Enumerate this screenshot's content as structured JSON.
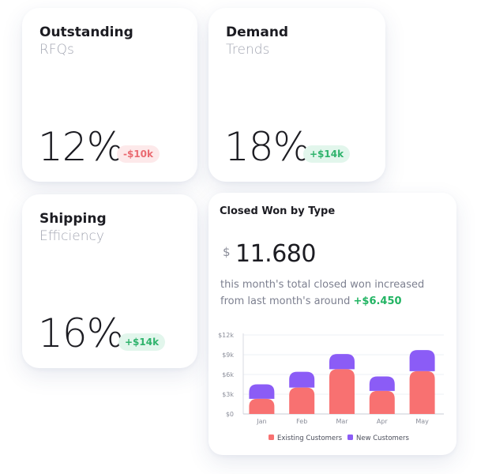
{
  "cards": [
    {
      "title": "Outstanding",
      "subtitle": "RFQs",
      "value": "12%",
      "change": "-$10k",
      "trend": "negative"
    },
    {
      "title": "Demand",
      "subtitle": "Trends",
      "value": "18%",
      "change": "+$14k",
      "trend": "positive"
    },
    {
      "title": "Shipping",
      "subtitle": "Efficiency",
      "value": "16%",
      "change": "+$14k",
      "trend": "positive"
    }
  ],
  "closed_won": {
    "title": "Closed Won by Type",
    "currency": "$",
    "amount": "11.680",
    "description": "this month's total closed won increased from last month's around",
    "increase": "+$6.450"
  },
  "colors": {
    "existing": "#f87171",
    "new": "#8b5cf6",
    "positive": "#2fb36c",
    "negative": "#ea6b72"
  },
  "chart_data": {
    "type": "bar",
    "stacked": true,
    "categories": [
      "Jan",
      "Feb",
      "Mar",
      "Apr",
      "May"
    ],
    "series": [
      {
        "name": "Existing Customers",
        "values": [
          2.3,
          4.0,
          6.8,
          3.5,
          6.5
        ]
      },
      {
        "name": "New Customers",
        "values": [
          2.2,
          2.4,
          2.3,
          2.2,
          3.2
        ]
      }
    ],
    "yticks": [
      "$0",
      "$3k",
      "$6k",
      "$9k",
      "$12k"
    ],
    "ylim": [
      0,
      12
    ],
    "grid": true,
    "legend_position": "bottom"
  }
}
